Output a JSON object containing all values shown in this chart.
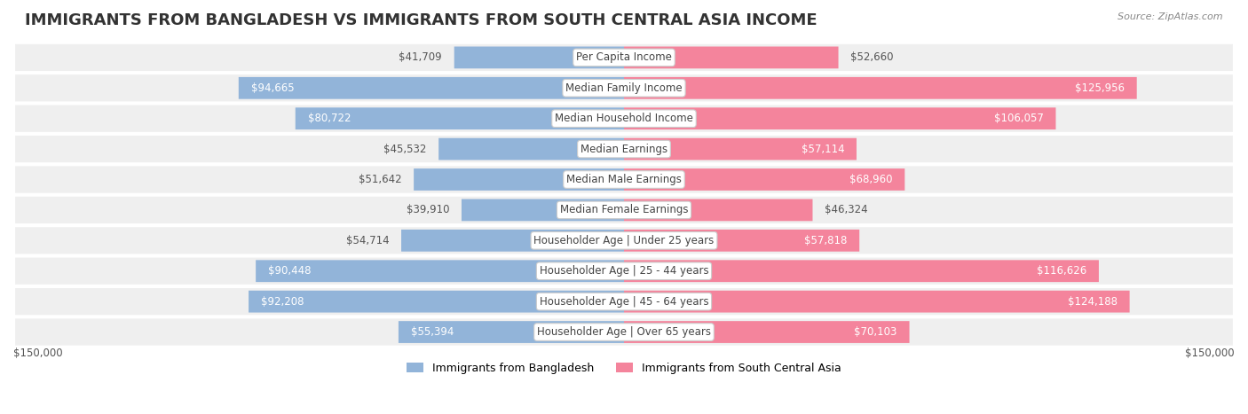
{
  "title": "IMMIGRANTS FROM BANGLADESH VS IMMIGRANTS FROM SOUTH CENTRAL ASIA INCOME",
  "source": "Source: ZipAtlas.com",
  "categories": [
    "Per Capita Income",
    "Median Family Income",
    "Median Household Income",
    "Median Earnings",
    "Median Male Earnings",
    "Median Female Earnings",
    "Householder Age | Under 25 years",
    "Householder Age | 25 - 44 years",
    "Householder Age | 45 - 64 years",
    "Householder Age | Over 65 years"
  ],
  "bangladesh_values": [
    41709,
    94665,
    80722,
    45532,
    51642,
    39910,
    54714,
    90448,
    92208,
    55394
  ],
  "south_central_asia_values": [
    52660,
    125956,
    106057,
    57114,
    68960,
    46324,
    57818,
    116626,
    124188,
    70103
  ],
  "bangladesh_color": "#92b4d9",
  "south_central_asia_color": "#f4849c",
  "bangladesh_label": "Immigrants from Bangladesh",
  "south_central_asia_label": "Immigrants from South Central Asia",
  "max_value": 150000,
  "background_color": "#f5f5f5",
  "bar_background_color": "#e8e8e8",
  "title_fontsize": 13,
  "label_fontsize": 8.5,
  "value_fontsize": 8.5,
  "axis_label_value": "$150,000"
}
